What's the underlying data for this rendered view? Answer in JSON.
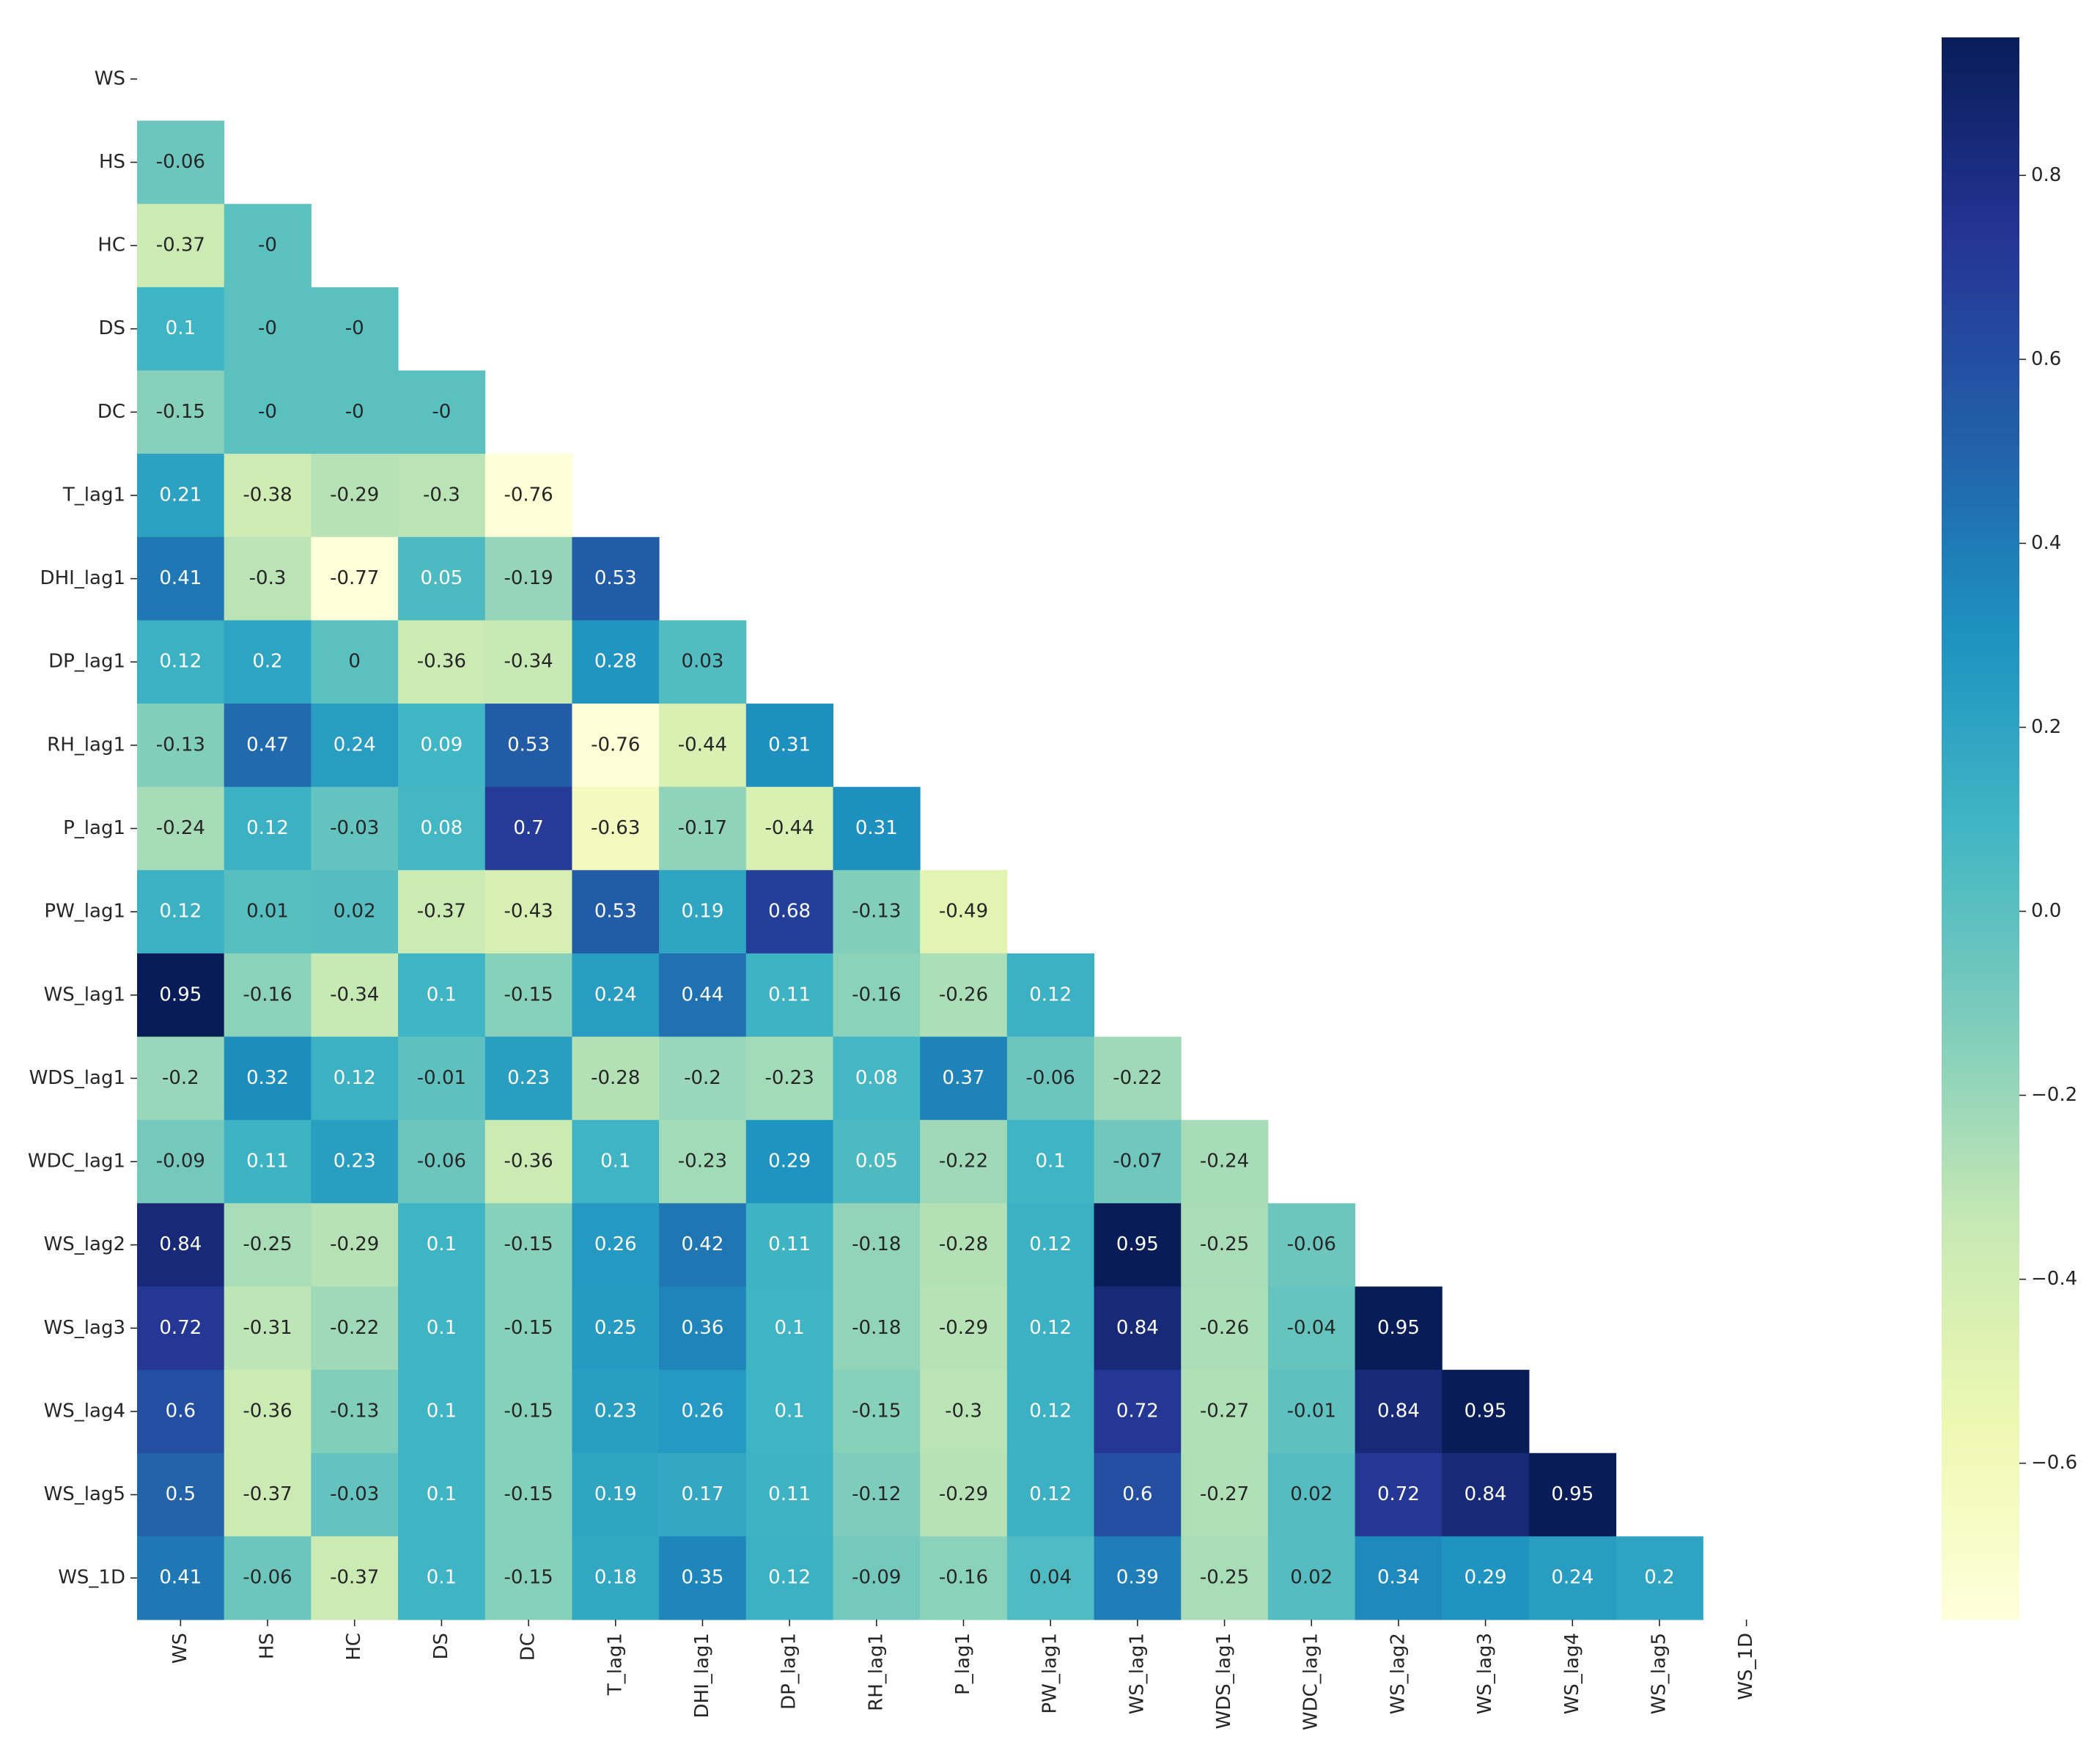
{
  "chart_data": {
    "type": "heatmap",
    "colormap": "YlGnBu",
    "categories": [
      "WS",
      "HS",
      "HC",
      "DS",
      "DC",
      "T_lag1",
      "DHI_lag1",
      "DP_lag1",
      "RH_lag1",
      "P_lag1",
      "PW_lag1",
      "WS_lag1",
      "WDS_lag1",
      "WDC_lag1",
      "WS_lag2",
      "WS_lag3",
      "WS_lag4",
      "WS_lag5",
      "WS_1D"
    ],
    "values": [
      [],
      [
        -0.06
      ],
      [
        -0.37,
        0
      ],
      [
        0.1,
        0,
        0
      ],
      [
        -0.15,
        0,
        0,
        0
      ],
      [
        0.21,
        -0.38,
        -0.29,
        -0.3,
        -0.76
      ],
      [
        0.41,
        -0.3,
        -0.77,
        0.05,
        -0.19,
        0.53
      ],
      [
        0.12,
        0.2,
        0,
        -0.36,
        -0.34,
        0.28,
        0.03
      ],
      [
        -0.13,
        0.47,
        0.24,
        0.09,
        0.53,
        -0.76,
        -0.44,
        0.31
      ],
      [
        -0.24,
        0.12,
        -0.03,
        0.08,
        0.7,
        -0.63,
        -0.17,
        -0.44,
        0.31
      ],
      [
        0.12,
        0.01,
        0.02,
        -0.37,
        -0.43,
        0.53,
        0.19,
        0.68,
        -0.13,
        -0.49
      ],
      [
        0.95,
        -0.16,
        -0.34,
        0.1,
        -0.15,
        0.24,
        0.44,
        0.11,
        -0.16,
        -0.26,
        0.12
      ],
      [
        -0.2,
        0.32,
        0.12,
        -0.01,
        0.23,
        -0.28,
        -0.2,
        -0.23,
        0.08,
        0.37,
        -0.06,
        -0.22
      ],
      [
        -0.09,
        0.11,
        0.23,
        -0.06,
        -0.36,
        0.1,
        -0.23,
        0.29,
        0.05,
        -0.22,
        0.1,
        -0.07,
        -0.24
      ],
      [
        0.84,
        -0.25,
        -0.29,
        0.1,
        -0.15,
        0.26,
        0.42,
        0.11,
        -0.18,
        -0.28,
        0.12,
        0.95,
        -0.25,
        -0.06
      ],
      [
        0.72,
        -0.31,
        -0.22,
        0.1,
        -0.15,
        0.25,
        0.36,
        0.1,
        -0.18,
        -0.29,
        0.12,
        0.84,
        -0.26,
        -0.04,
        0.95
      ],
      [
        0.6,
        -0.36,
        -0.13,
        0.1,
        -0.15,
        0.23,
        0.26,
        0.1,
        -0.15,
        -0.3,
        0.12,
        0.72,
        -0.27,
        -0.01,
        0.84,
        0.95
      ],
      [
        0.5,
        -0.37,
        -0.03,
        0.1,
        -0.15,
        0.19,
        0.17,
        0.11,
        -0.12,
        -0.29,
        0.12,
        0.6,
        -0.27,
        0.02,
        0.72,
        0.84,
        0.95
      ],
      [
        0.41,
        -0.06,
        -0.37,
        0.1,
        -0.15,
        0.18,
        0.35,
        0.12,
        -0.09,
        -0.16,
        0.04,
        0.39,
        -0.25,
        0.02,
        0.34,
        0.29,
        0.24,
        0.2
      ]
    ],
    "value_labels": [
      [],
      [
        "-0.06"
      ],
      [
        "-0.37",
        "-0"
      ],
      [
        "0.1",
        "-0",
        "-0"
      ],
      [
        "-0.15",
        "-0",
        "-0",
        "-0"
      ],
      [
        "0.21",
        "-0.38",
        "-0.29",
        "-0.3",
        "-0.76"
      ],
      [
        "0.41",
        "-0.3",
        "-0.77",
        "0.05",
        "-0.19",
        "0.53"
      ],
      [
        "0.12",
        "0.2",
        "0",
        "-0.36",
        "-0.34",
        "0.28",
        "0.03"
      ],
      [
        "-0.13",
        "0.47",
        "0.24",
        "0.09",
        "0.53",
        "-0.76",
        "-0.44",
        "0.31"
      ],
      [
        "-0.24",
        "0.12",
        "-0.03",
        "0.08",
        "0.7",
        "-0.63",
        "-0.17",
        "-0.44",
        "0.31"
      ],
      [
        "0.12",
        "0.01",
        "0.02",
        "-0.37",
        "-0.43",
        "0.53",
        "0.19",
        "0.68",
        "-0.13",
        "-0.49"
      ],
      [
        "0.95",
        "-0.16",
        "-0.34",
        "0.1",
        "-0.15",
        "0.24",
        "0.44",
        "0.11",
        "-0.16",
        "-0.26",
        "0.12"
      ],
      [
        "-0.2",
        "0.32",
        "0.12",
        "-0.01",
        "0.23",
        "-0.28",
        "-0.2",
        "-0.23",
        "0.08",
        "0.37",
        "-0.06",
        "-0.22"
      ],
      [
        "-0.09",
        "0.11",
        "0.23",
        "-0.06",
        "-0.36",
        "0.1",
        "-0.23",
        "0.29",
        "0.05",
        "-0.22",
        "0.1",
        "-0.07",
        "-0.24"
      ],
      [
        "0.84",
        "-0.25",
        "-0.29",
        "0.1",
        "-0.15",
        "0.26",
        "0.42",
        "0.11",
        "-0.18",
        "-0.28",
        "0.12",
        "0.95",
        "-0.25",
        "-0.06"
      ],
      [
        "0.72",
        "-0.31",
        "-0.22",
        "0.1",
        "-0.15",
        "0.25",
        "0.36",
        "0.1",
        "-0.18",
        "-0.29",
        "0.12",
        "0.84",
        "-0.26",
        "-0.04",
        "0.95"
      ],
      [
        "0.6",
        "-0.36",
        "-0.13",
        "0.1",
        "-0.15",
        "0.23",
        "0.26",
        "0.1",
        "-0.15",
        "-0.3",
        "0.12",
        "0.72",
        "-0.27",
        "-0.01",
        "0.84",
        "0.95"
      ],
      [
        "0.5",
        "-0.37",
        "-0.03",
        "0.1",
        "-0.15",
        "0.19",
        "0.17",
        "0.11",
        "-0.12",
        "-0.29",
        "0.12",
        "0.6",
        "-0.27",
        "0.02",
        "0.72",
        "0.84",
        "0.95"
      ],
      [
        "0.41",
        "-0.06",
        "-0.37",
        "0.1",
        "-0.15",
        "0.18",
        "0.35",
        "0.12",
        "-0.09",
        "-0.16",
        "0.04",
        "0.39",
        "-0.25",
        "0.02",
        "0.34",
        "0.29",
        "0.24",
        "0.2"
      ]
    ],
    "clim": [
      -0.77,
      0.95
    ],
    "cticks": [
      {
        "value": -0.6,
        "label": "−0.6"
      },
      {
        "value": -0.4,
        "label": "−0.4"
      },
      {
        "value": -0.2,
        "label": "−0.2"
      },
      {
        "value": 0,
        "label": "0.0"
      },
      0.2,
      0.4,
      0.6,
      0.8
    ]
  }
}
